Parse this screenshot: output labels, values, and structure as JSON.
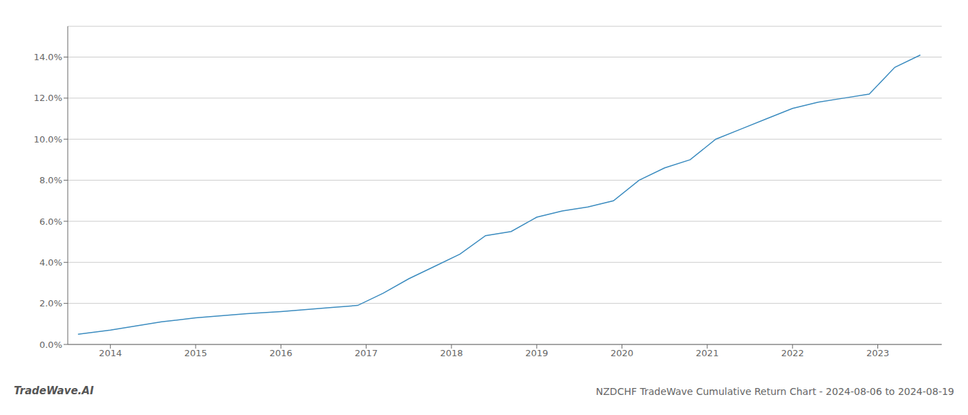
{
  "chart_data": {
    "type": "line",
    "title": "NZDCHF TradeWave Cumulative Return Chart - 2024-08-06 to 2024-08-19",
    "annotations": [
      "TradeWave.AI"
    ],
    "x": [
      2013.62,
      2014.0,
      2014.3,
      2014.6,
      2015.0,
      2015.3,
      2015.6,
      2016.0,
      2016.3,
      2016.6,
      2016.9,
      2017.2,
      2017.5,
      2017.8,
      2018.1,
      2018.4,
      2018.7,
      2019.0,
      2019.3,
      2019.6,
      2019.9,
      2020.2,
      2020.5,
      2020.8,
      2021.1,
      2021.4,
      2021.7,
      2022.0,
      2022.3,
      2022.6,
      2022.9,
      2023.2,
      2023.5
    ],
    "values": [
      0.005,
      0.007,
      0.009,
      0.011,
      0.013,
      0.014,
      0.015,
      0.016,
      0.017,
      0.018,
      0.019,
      0.025,
      0.032,
      0.038,
      0.044,
      0.053,
      0.055,
      0.062,
      0.065,
      0.067,
      0.07,
      0.08,
      0.086,
      0.09,
      0.1,
      0.105,
      0.11,
      0.115,
      0.118,
      0.12,
      0.122,
      0.135,
      0.141
    ],
    "color": "#3a8bbf",
    "xlim": [
      2013.5,
      2023.75
    ],
    "xticks": [
      2014,
      2015,
      2016,
      2017,
      2018,
      2019,
      2020,
      2021,
      2022,
      2023
    ],
    "ylim": [
      0.0,
      0.155
    ],
    "yticks": [
      {
        "value": 0.0,
        "label": "0.0%"
      },
      {
        "value": 0.02,
        "label": "2.0%"
      },
      {
        "value": 0.04,
        "label": "4.0%"
      },
      {
        "value": 0.06,
        "label": "6.0%"
      },
      {
        "value": 0.08,
        "label": "8.0%"
      },
      {
        "value": 0.1,
        "label": "10.0%"
      },
      {
        "value": 0.12,
        "label": "12.0%"
      },
      {
        "value": 0.14,
        "label": "14.0%"
      }
    ],
    "grid": true
  }
}
